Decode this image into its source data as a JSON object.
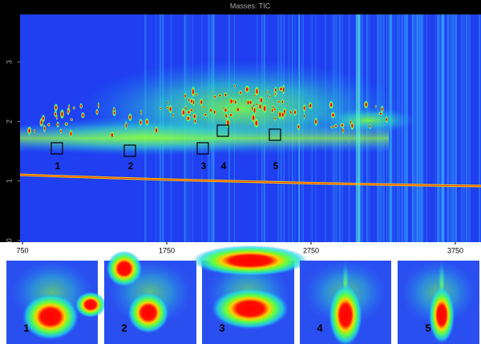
{
  "chart_data": {
    "type": "heatmap",
    "title": "Masses: TIC",
    "xlim": [
      733,
      3928
    ],
    "ylim": [
      -0.03,
      3.8
    ],
    "xticks": [
      750,
      1750,
      2750,
      3750
    ],
    "yticks": [
      0,
      1,
      2,
      3
    ],
    "annotations": [
      "1",
      "2",
      "3",
      "4",
      "5"
    ]
  },
  "insets": {
    "labels": [
      "1",
      "2",
      "3",
      "4",
      "5"
    ]
  }
}
